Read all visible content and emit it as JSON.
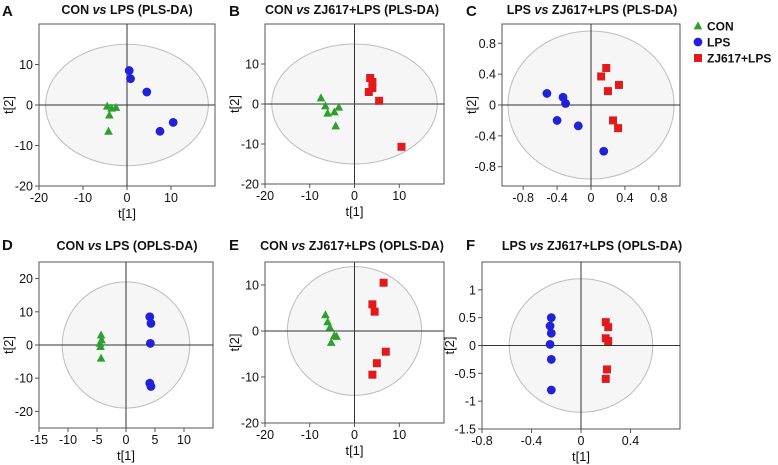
{
  "colors": {
    "CON": "#2ca02c",
    "LPS": "#1f22d8",
    "ZJ617+LPS": "#e31a1c"
  },
  "legend": [
    {
      "group": "CON",
      "label": "CON",
      "marker": "triangle"
    },
    {
      "group": "LPS",
      "label": "LPS",
      "marker": "circle"
    },
    {
      "group": "ZJ617+LPS",
      "label": "ZJ617+LPS",
      "marker": "square"
    }
  ],
  "chart_data": [
    {
      "letter": "A",
      "type": "scatter",
      "title_left": "CON",
      "title_vs": "vs",
      "title_right": "LPS (PLS-DA)",
      "xlabel": "t[1]",
      "ylabel": "t[2]",
      "xlim": [
        -20,
        20
      ],
      "ylim": [
        -20,
        20
      ],
      "xticks": [
        -20,
        -10,
        0,
        10
      ],
      "yticks": [
        10,
        0,
        -10,
        -20
      ],
      "xtick_labels": [
        "-20",
        "-10",
        "0",
        "10"
      ],
      "ytick_labels": [
        "10",
        "0",
        "-10",
        "-20"
      ],
      "ellipse": {
        "rx": 18.5,
        "ry": 15
      },
      "series": [
        {
          "name": "CON",
          "points": [
            [
              -4.5,
              -0.3
            ],
            [
              -3.5,
              -0.8
            ],
            [
              -2.5,
              -0.6
            ],
            [
              -4,
              -2.5
            ],
            [
              -4.2,
              -6.5
            ]
          ]
        },
        {
          "name": "LPS",
          "points": [
            [
              0.5,
              8.5
            ],
            [
              0.8,
              6.5
            ],
            [
              4.5,
              3.2
            ],
            [
              10.5,
              -4.3
            ],
            [
              7.5,
              -6.5
            ]
          ]
        }
      ]
    },
    {
      "letter": "B",
      "type": "scatter",
      "title_left": "CON",
      "title_vs": "vs",
      "title_right": "ZJ617+LPS (PLS-DA)",
      "xlabel": "t[1]",
      "ylabel": "t[2]",
      "xlim": [
        -20,
        20
      ],
      "ylim": [
        -20,
        20
      ],
      "xticks": [
        -20,
        -10,
        0,
        10
      ],
      "yticks": [
        10,
        0,
        -10,
        -20
      ],
      "xtick_labels": [
        "-20",
        "-10",
        "0",
        "10"
      ],
      "ytick_labels": [
        "10",
        "0",
        "-10",
        "-20"
      ],
      "ellipse": {
        "rx": 18.5,
        "ry": 15
      },
      "series": [
        {
          "name": "CON",
          "points": [
            [
              -7.5,
              1.5
            ],
            [
              -6.5,
              -0.5
            ],
            [
              -3.5,
              -0.8
            ],
            [
              -4.5,
              -2
            ],
            [
              -6,
              -2.3
            ],
            [
              -4.2,
              -5.5
            ]
          ]
        },
        {
          "name": "ZJ617+LPS",
          "points": [
            [
              3.5,
              6.5
            ],
            [
              4,
              5.5
            ],
            [
              4,
              4
            ],
            [
              3.2,
              3
            ],
            [
              5.5,
              0.8
            ],
            [
              10.5,
              -10.7
            ]
          ]
        }
      ]
    },
    {
      "letter": "C",
      "type": "scatter",
      "title_left": "LPS",
      "title_vs": "vs",
      "title_right": "ZJ617+LPS (PLS-DA)",
      "xlabel": "",
      "ylabel": "t[2]",
      "xlim": [
        -1.05,
        1.05
      ],
      "ylim": [
        -1.05,
        1.05
      ],
      "xticks": [
        -0.8,
        -0.4,
        0,
        0.4,
        0.8
      ],
      "yticks": [
        0.8,
        0.4,
        0,
        -0.4,
        -0.8
      ],
      "xtick_labels": [
        "-0.8",
        "-0.4",
        "0",
        "0.4",
        "0.8"
      ],
      "ytick_labels": [
        "0.8",
        "0.4",
        "0",
        "-0.4",
        "-0.8"
      ],
      "ellipse": {
        "rx": 0.98,
        "ry": 0.96
      },
      "series": [
        {
          "name": "LPS",
          "points": [
            [
              -0.52,
              0.15
            ],
            [
              -0.33,
              0.1
            ],
            [
              -0.3,
              0.02
            ],
            [
              -0.4,
              -0.2
            ],
            [
              -0.15,
              -0.27
            ],
            [
              0.15,
              -0.6
            ]
          ]
        },
        {
          "name": "ZJ617+LPS",
          "points": [
            [
              0.18,
              0.48
            ],
            [
              0.12,
              0.37
            ],
            [
              0.33,
              0.26
            ],
            [
              0.2,
              0.18
            ],
            [
              0.26,
              -0.2
            ],
            [
              0.32,
              -0.3
            ]
          ]
        }
      ]
    },
    {
      "letter": "D",
      "type": "scatter",
      "title_left": "CON",
      "title_vs": "vs",
      "title_right": "LPS (OPLS-DA)",
      "xlabel": "t[1]",
      "ylabel": "t[2]",
      "xlim": [
        -15,
        15
      ],
      "ylim": [
        -25,
        25
      ],
      "xticks": [
        -15,
        -10,
        -5,
        0,
        5,
        10
      ],
      "yticks": [
        20,
        10,
        0,
        -10,
        -20
      ],
      "xtick_labels": [
        "-15",
        "-10",
        "-5",
        "0",
        "5",
        "10"
      ],
      "ytick_labels": [
        "20",
        "10",
        "0",
        "-10",
        "-20"
      ],
      "ellipse": {
        "rx": 11,
        "ry": 19
      },
      "series": [
        {
          "name": "CON",
          "points": [
            [
              -4.3,
              3
            ],
            [
              -4.2,
              1.5
            ],
            [
              -4.5,
              0.5
            ],
            [
              -4.4,
              -0.5
            ],
            [
              -4.3,
              -4
            ]
          ]
        },
        {
          "name": "LPS",
          "points": [
            [
              4.1,
              8.5
            ],
            [
              4.3,
              6.5
            ],
            [
              4.2,
              0.5
            ],
            [
              4.1,
              -11.5
            ],
            [
              4.3,
              -12.5
            ]
          ]
        }
      ]
    },
    {
      "letter": "E",
      "type": "scatter",
      "title_left": "CON",
      "title_vs": "vs",
      "title_right": "ZJ617+LPS (OPLS-DA)",
      "xlabel": "t[1]",
      "ylabel": "t[2]",
      "xlim": [
        -20,
        20
      ],
      "ylim": [
        -20,
        15
      ],
      "xticks": [
        -20,
        -10,
        0,
        10
      ],
      "yticks": [
        10,
        0,
        -10,
        -20
      ],
      "xtick_labels": [
        "-20",
        "-10",
        "0",
        "10"
      ],
      "ytick_labels": [
        "10",
        "0",
        "-10",
        "-20"
      ],
      "ellipse": {
        "rx": 15,
        "ry": 14
      },
      "series": [
        {
          "name": "CON",
          "points": [
            [
              -6.5,
              3.5
            ],
            [
              -6,
              2
            ],
            [
              -5.5,
              0.8
            ],
            [
              -4.5,
              -1
            ],
            [
              -4,
              -1.2
            ],
            [
              -5.2,
              -2.5
            ]
          ]
        },
        {
          "name": "ZJ617+LPS",
          "points": [
            [
              6.5,
              10.5
            ],
            [
              4,
              5.8
            ],
            [
              4.5,
              4.2
            ],
            [
              7,
              -4.5
            ],
            [
              5,
              -7
            ],
            [
              4,
              -9.5
            ]
          ]
        }
      ]
    },
    {
      "letter": "F",
      "type": "scatter",
      "title_left": "LPS",
      "title_vs": "vs",
      "title_right": "ZJ617+LPS (OPLS-DA)",
      "xlabel": "t[1]",
      "ylabel": "t[2]",
      "xlim": [
        -0.8,
        0.8
      ],
      "ylim": [
        -1.5,
        1.5
      ],
      "xticks": [
        -0.8,
        -0.4,
        0,
        0.4
      ],
      "yticks": [
        1,
        0.5,
        0,
        -0.5,
        -1,
        -1.5
      ],
      "xtick_labels": [
        "-0.8",
        "-0.4",
        "0",
        "0.4"
      ],
      "ytick_labels": [
        "1",
        "0.5",
        "0",
        "-0.5",
        "-1",
        "-1.5"
      ],
      "ellipse": {
        "rx": 0.58,
        "ry": 1.2
      },
      "series": [
        {
          "name": "LPS",
          "points": [
            [
              -0.24,
              0.5
            ],
            [
              -0.25,
              0.35
            ],
            [
              -0.24,
              0.22
            ],
            [
              -0.25,
              0.02
            ],
            [
              -0.24,
              -0.25
            ],
            [
              -0.24,
              -0.8
            ]
          ]
        },
        {
          "name": "ZJ617+LPS",
          "points": [
            [
              0.2,
              0.42
            ],
            [
              0.22,
              0.33
            ],
            [
              0.2,
              0.13
            ],
            [
              0.22,
              0.08
            ],
            [
              0.21,
              -0.43
            ],
            [
              0.2,
              -0.6
            ]
          ]
        }
      ]
    }
  ]
}
